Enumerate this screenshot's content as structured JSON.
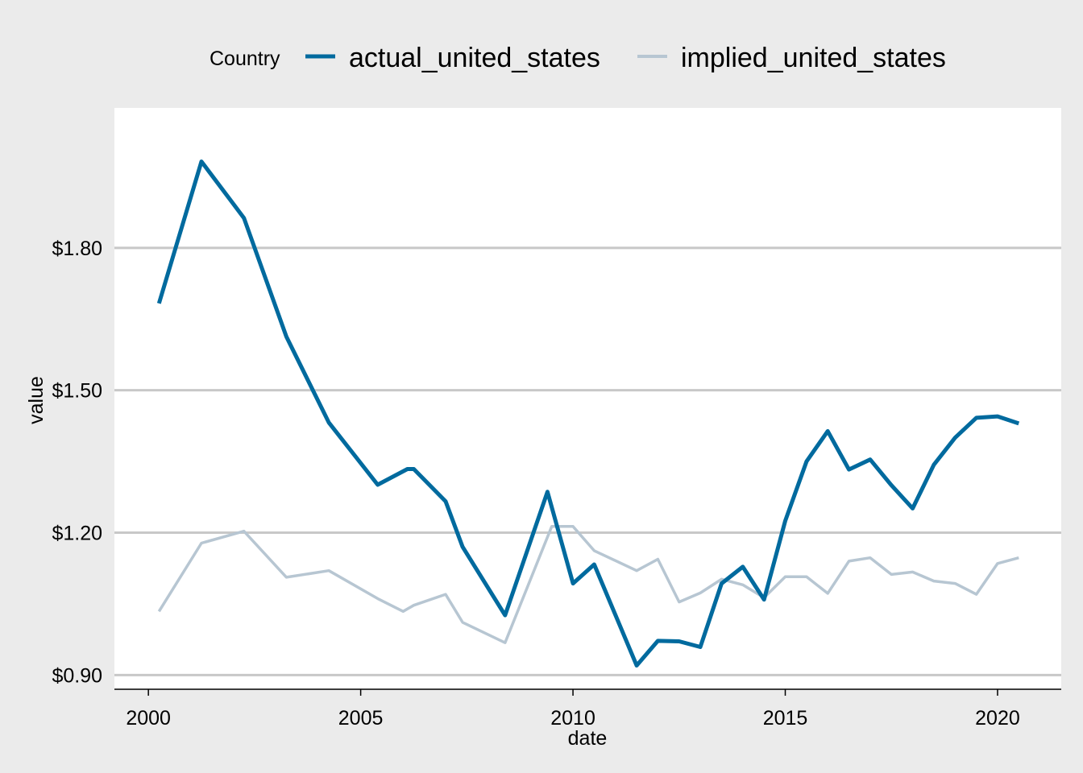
{
  "chart_data": {
    "type": "line",
    "title": "",
    "xlabel": "date",
    "ylabel": "value",
    "legend_title": "Country",
    "legend_position": "top",
    "grid": "horizontal",
    "xlim": [
      1999.2,
      2021.5
    ],
    "ylim": [
      0.87,
      2.095
    ],
    "x_ticks": [
      2000,
      2005,
      2010,
      2015,
      2020
    ],
    "x_tick_labels": [
      "2000",
      "2005",
      "2010",
      "2015",
      "2020"
    ],
    "y_ticks": [
      0.9,
      1.2,
      1.5,
      1.8
    ],
    "y_tick_labels": [
      "$0.90",
      "$1.20",
      "$1.50",
      "$1.80"
    ],
    "series": [
      {
        "name": "actual_united_states",
        "color": "#006a9e",
        "x": [
          2000.25,
          2001.25,
          2002.25,
          2003.25,
          2004.25,
          2005.4,
          2006.1,
          2006.25,
          2007.0,
          2007.4,
          2008.4,
          2009.4,
          2010.0,
          2010.5,
          2011.5,
          2012.0,
          2012.5,
          2013.0,
          2013.5,
          2014.0,
          2014.5,
          2015.0,
          2015.5,
          2016.0,
          2016.5,
          2017.0,
          2017.5,
          2018.0,
          2018.5,
          2019.0,
          2019.5,
          2020.0,
          2020.5
        ],
        "values": [
          1.683,
          1.982,
          1.863,
          1.613,
          1.432,
          1.301,
          1.334,
          1.334,
          1.266,
          1.17,
          1.026,
          1.286,
          1.093,
          1.133,
          0.92,
          0.972,
          0.971,
          0.959,
          1.093,
          1.128,
          1.059,
          1.225,
          1.35,
          1.414,
          1.333,
          1.354,
          1.3,
          1.251,
          1.343,
          1.4,
          1.442,
          1.445,
          1.43
        ]
      },
      {
        "name": "implied_united_states",
        "color": "#b7c6d2",
        "x": [
          2000.25,
          2001.25,
          2002.25,
          2003.25,
          2004.25,
          2005.4,
          2006.0,
          2006.25,
          2007.0,
          2007.4,
          2008.4,
          2009.5,
          2010.0,
          2010.5,
          2011.5,
          2012.0,
          2012.5,
          2013.0,
          2013.5,
          2014.0,
          2014.5,
          2015.0,
          2015.5,
          2016.0,
          2016.5,
          2017.0,
          2017.5,
          2018.0,
          2018.5,
          2019.0,
          2019.5,
          2020.0,
          2020.5
        ],
        "values": [
          1.034,
          1.178,
          1.203,
          1.106,
          1.12,
          1.061,
          1.034,
          1.047,
          1.07,
          1.011,
          0.968,
          1.213,
          1.213,
          1.162,
          1.12,
          1.144,
          1.054,
          1.073,
          1.102,
          1.09,
          1.063,
          1.107,
          1.107,
          1.072,
          1.14,
          1.147,
          1.112,
          1.117,
          1.098,
          1.093,
          1.07,
          1.135,
          1.147
        ]
      }
    ]
  }
}
